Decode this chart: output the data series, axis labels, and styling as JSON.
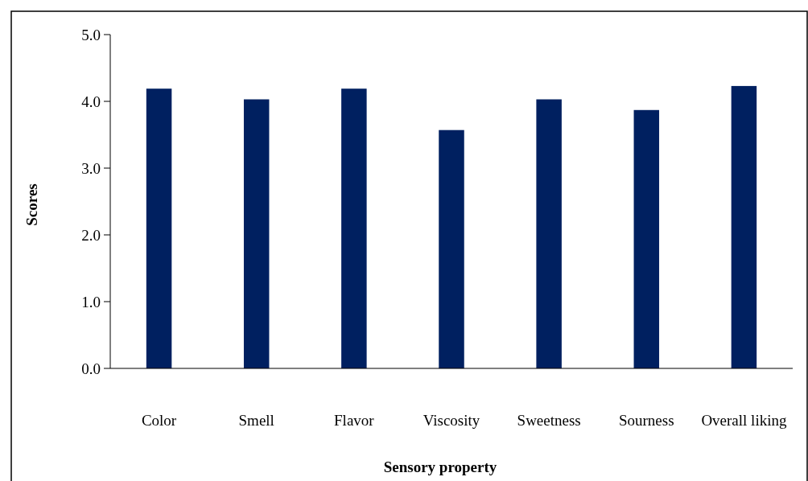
{
  "chart_data": {
    "type": "bar",
    "xlabel": "Sensory property",
    "ylabel": "Scores",
    "categories": [
      "Color",
      "Smell",
      "Flavor",
      "Viscosity",
      "Sweetness",
      "Sourness",
      "Overall liking"
    ],
    "values": [
      4.19,
      4.03,
      4.19,
      3.57,
      4.03,
      3.87,
      4.23
    ],
    "color": "#002060",
    "ylim": [
      0,
      5
    ],
    "yticks": [
      {
        "value": 0,
        "label": "0.0"
      },
      {
        "value": 1,
        "label": "1.0"
      },
      {
        "value": 2,
        "label": "2.0"
      },
      {
        "value": 3,
        "label": "3.0"
      },
      {
        "value": 4,
        "label": "4.0"
      },
      {
        "value": 5,
        "label": "5.0"
      }
    ],
    "grid": false
  }
}
